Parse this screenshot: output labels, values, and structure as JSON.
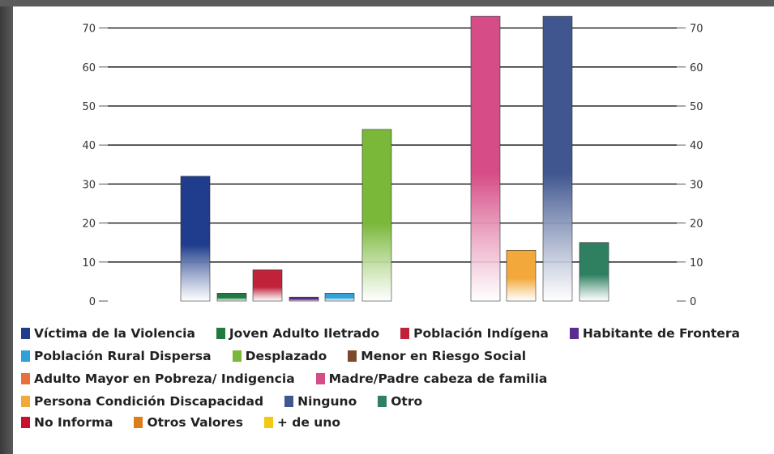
{
  "chart_data": {
    "type": "bar",
    "yticks": [
      "0",
      "10",
      "20",
      "30",
      "40",
      "50",
      "60",
      "70"
    ],
    "ylim": [
      0,
      73
    ],
    "grid": true,
    "series": [
      {
        "name": "Víctima de la Violencia",
        "value": 32,
        "color": "#1f3d8c"
      },
      {
        "name": "Joven Adulto Iletrado",
        "value": 2,
        "color": "#1e7a3e"
      },
      {
        "name": "Población Indígena",
        "value": 8,
        "color": "#c0223a"
      },
      {
        "name": "Habitante de Frontera",
        "value": 1,
        "color": "#5b2d8e"
      },
      {
        "name": "Población Rural Dispersa",
        "value": 2,
        "color": "#2fa0d8"
      },
      {
        "name": "Desplazado",
        "value": 44,
        "color": "#7ab83a"
      },
      {
        "name": "Menor en Riesgo Social",
        "value": 0,
        "color": "#7a4a2a"
      },
      {
        "name": "Adulto Mayor en Pobreza/ Indigencia",
        "value": 0,
        "color": "#e8703a"
      },
      {
        "name": "Madre/Padre cabeza de familia",
        "value": 73,
        "color": "#d64c86"
      },
      {
        "name": "Persona Condición Discapacidad",
        "value": 13,
        "color": "#f2a93a"
      },
      {
        "name": "Ninguno",
        "value": 73,
        "color": "#3f568f"
      },
      {
        "name": "Otro",
        "value": 15,
        "color": "#2e8060"
      },
      {
        "name": "No Informa",
        "value": 0,
        "color": "#c8102e"
      },
      {
        "name": "Otros Valores",
        "value": 0,
        "color": "#e07b1a"
      },
      {
        "name": "+ de uno",
        "value": 0,
        "color": "#f2c813"
      }
    ]
  },
  "legend_rows": [
    [
      0,
      1,
      2,
      3
    ],
    [
      4,
      5,
      6
    ],
    [
      7,
      8
    ],
    [
      9,
      10,
      11
    ],
    [
      12,
      13,
      14
    ]
  ]
}
